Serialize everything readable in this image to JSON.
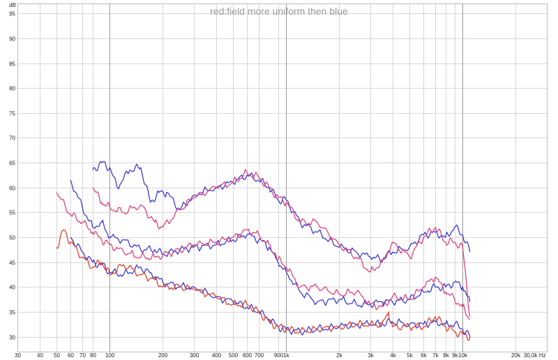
{
  "chart_data": {
    "type": "line",
    "title": "red:field more uniform then blue",
    "ylabel": "dB",
    "xunit": "Hz",
    "xscale": "log",
    "xlim": [
      30,
      30000
    ],
    "ylim": [
      27,
      97
    ],
    "grid": true,
    "x_tick_values": [
      30,
      40,
      50,
      60,
      70,
      80,
      100,
      200,
      300,
      400,
      500,
      600,
      700,
      900,
      1000,
      2000,
      3000,
      4000,
      5000,
      6000,
      7000,
      8000,
      9000,
      10000,
      20000,
      30000
    ],
    "x_tick_labels": [
      "30",
      "40",
      "50",
      "60",
      "70",
      "80",
      "100",
      "200",
      "300",
      "400",
      "500",
      "600",
      "700",
      "900",
      "1k",
      "2k",
      "3k",
      "4k",
      "5k",
      "6k",
      "7k",
      "8k",
      "9k",
      "10k",
      "20k",
      "30,0k"
    ],
    "y_tick_values": [
      30,
      35,
      40,
      45,
      50,
      55,
      60,
      65,
      70,
      75,
      80,
      85,
      90,
      95
    ],
    "y_tick_labels": [
      "30",
      "35",
      "40",
      "45",
      "50",
      "55",
      "60",
      "65",
      "70",
      "75",
      "80",
      "85",
      "90",
      "95"
    ],
    "series": [
      {
        "color": "#3a3ad6",
        "x": [
          80,
          90,
          100,
          110,
          130,
          150,
          170,
          190,
          210,
          250,
          300,
          400,
          500,
          600,
          700,
          800,
          900,
          1000,
          1200,
          1500,
          2000,
          2500,
          3000,
          3500,
          4000,
          5000,
          6000,
          7000,
          8000,
          9000,
          10000,
          11000
        ],
        "y": [
          63.5,
          65,
          64,
          60,
          63.5,
          64,
          57,
          59,
          59,
          55.5,
          58.5,
          60,
          61,
          62.5,
          61.5,
          60,
          57.5,
          57.5,
          53,
          51,
          48,
          47,
          46,
          45.5,
          47,
          48,
          50.5,
          51,
          50,
          52,
          50.5,
          47
        ]
      },
      {
        "color": "#e0407a",
        "x": [
          80,
          90,
          100,
          120,
          150,
          180,
          200,
          250,
          300,
          400,
          500,
          600,
          700,
          800,
          900,
          1000,
          1200,
          1500,
          2000,
          2500,
          3000,
          3500,
          4000,
          5000,
          6000,
          7000,
          8000,
          9000,
          10000,
          11000
        ],
        "y": [
          60,
          57,
          56,
          55,
          56.5,
          53,
          52,
          55.5,
          58,
          60,
          61,
          63,
          62,
          60,
          58,
          57,
          53,
          53,
          48.5,
          46,
          43,
          45,
          49,
          46,
          50,
          52,
          49,
          49,
          48,
          34
        ]
      },
      {
        "color": "#3a3ad6",
        "x": [
          60,
          70,
          80,
          90,
          100,
          120,
          150,
          180,
          200,
          250,
          300,
          400,
          500,
          600,
          700,
          800,
          900,
          1000,
          1200,
          1500,
          2000,
          2500,
          3000,
          3500,
          4000,
          5000,
          6000,
          7000,
          8000,
          9000,
          10000,
          11000
        ],
        "y": [
          61.5,
          56,
          52,
          53,
          50,
          49.5,
          47.5,
          47.5,
          46.5,
          47.5,
          48,
          48.5,
          49.5,
          50.5,
          49.5,
          48,
          45,
          43,
          39,
          37,
          37.5,
          36.5,
          36.5,
          37,
          37,
          37.5,
          39,
          40,
          40,
          41,
          40,
          37
        ]
      },
      {
        "color": "#e0407a",
        "x": [
          50,
          60,
          70,
          80,
          90,
          100,
          120,
          150,
          180,
          200,
          250,
          300,
          400,
          500,
          600,
          700,
          800,
          900,
          1000,
          1200,
          1500,
          2000,
          2500,
          3000,
          3500,
          4000,
          5000,
          6000,
          7000,
          8000,
          9000,
          10000,
          11000
        ],
        "y": [
          59,
          54.5,
          53,
          51,
          49.5,
          48.5,
          47,
          46,
          46,
          46.5,
          47.5,
          48.5,
          49,
          50,
          51.5,
          50.5,
          48.5,
          45.5,
          44,
          40,
          40,
          38.5,
          39,
          36.5,
          36,
          38,
          37.5,
          40,
          42,
          39,
          37.5,
          36,
          33.5
        ]
      },
      {
        "color": "#3a3ad6",
        "x": [
          60,
          70,
          80,
          90,
          100,
          120,
          150,
          180,
          200,
          250,
          300,
          400,
          500,
          600,
          700,
          800,
          900,
          1000,
          1200,
          1500,
          2000,
          2500,
          3000,
          3500,
          4000,
          5000,
          6000,
          7000,
          8000,
          9000,
          10000,
          11000
        ],
        "y": [
          50,
          47,
          45,
          44.5,
          43,
          42.5,
          44,
          42,
          41,
          40,
          40,
          38,
          37,
          36,
          35,
          33.5,
          32,
          31.5,
          31,
          31.5,
          32,
          32.5,
          32.5,
          32.5,
          33,
          32.5,
          32.5,
          33,
          32.5,
          32.5,
          31.5,
          30
        ]
      },
      {
        "color": "#e0402a",
        "x": [
          50,
          55,
          60,
          70,
          80,
          90,
          100,
          120,
          150,
          180,
          200,
          250,
          300,
          400,
          500,
          600,
          700,
          800,
          900,
          1000,
          1200,
          1500,
          2000,
          2500,
          3000,
          3500,
          3800,
          4000,
          5000,
          6000,
          7000,
          8000,
          9000,
          10000,
          11000
        ],
        "y": [
          48,
          51.5,
          49,
          46,
          44,
          45,
          42.5,
          44.5,
          42.5,
          41.5,
          40,
          40,
          39.5,
          38,
          36.5,
          36.5,
          35,
          33,
          32,
          31.5,
          31,
          31.5,
          32,
          32.5,
          32.5,
          32.5,
          35,
          32,
          32,
          32,
          34,
          32,
          31,
          30.5,
          30
        ]
      }
    ]
  }
}
